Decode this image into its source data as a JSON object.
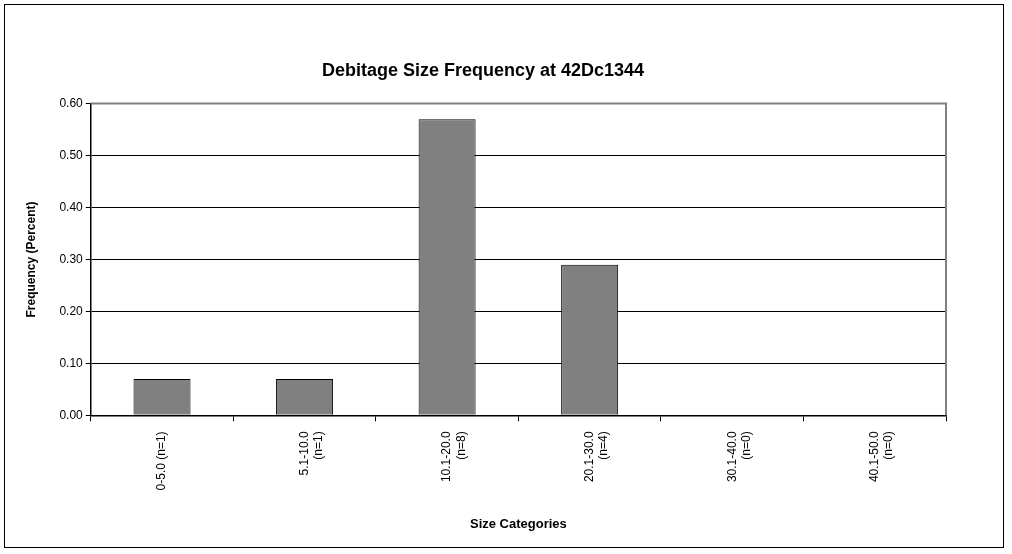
{
  "chart_data": {
    "type": "bar",
    "title": "Debitage Size Frequency at 42Dc1344",
    "xlabel": "Size Categories",
    "ylabel": "Frequency (Percent)",
    "categories": [
      "0-5.0 (n=1)",
      "5.1-10.0\n(n=1)",
      "10.1-20.0\n(n=8)",
      "20.1-30.0\n(n=4)",
      "30.1-40.0\n(n=0)",
      "40.1-50.0\n(n=0)"
    ],
    "values": [
      0.07,
      0.07,
      0.57,
      0.29,
      0,
      0
    ],
    "color": "#808080",
    "ylim": [
      0,
      0.6
    ],
    "yticks": [
      {
        "value": 0,
        "label": "0.00"
      },
      {
        "value": 0.1,
        "label": "0.10"
      },
      {
        "value": 0.2,
        "label": "0.20"
      },
      {
        "value": 0.3,
        "label": "0.30"
      },
      {
        "value": 0.4,
        "label": "0.40"
      },
      {
        "value": 0.5,
        "label": "0.50"
      },
      {
        "value": 0.6,
        "label": "0.60"
      }
    ],
    "grid": "y",
    "legend": false
  }
}
